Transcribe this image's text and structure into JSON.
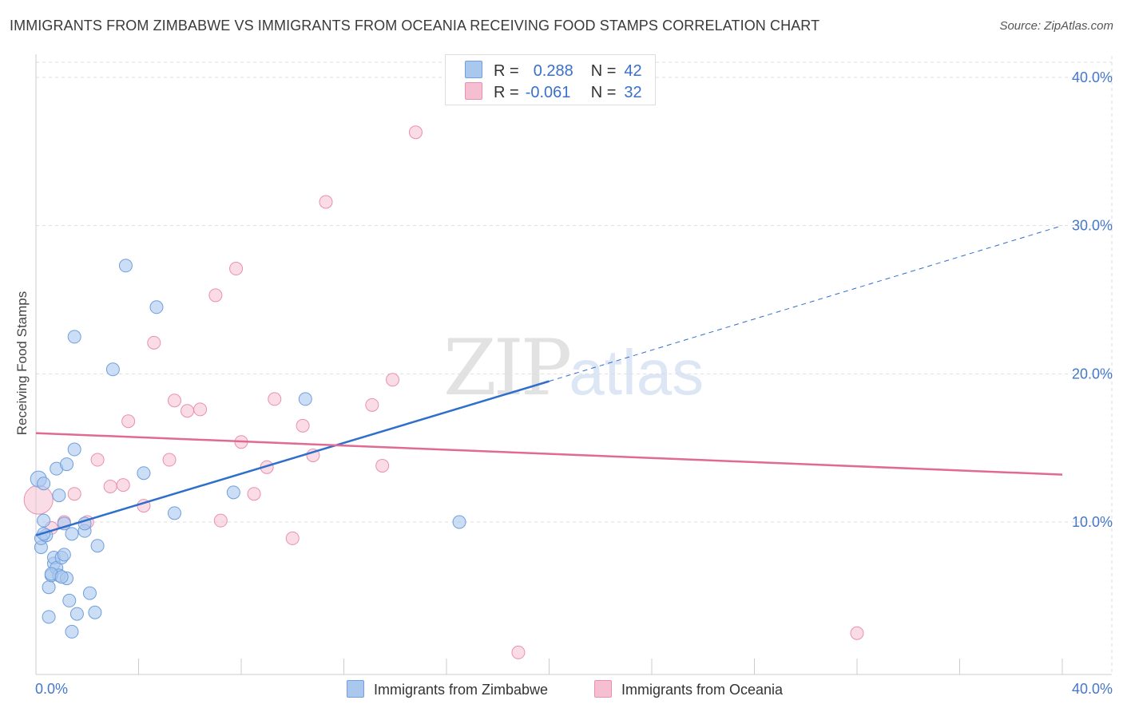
{
  "title": "IMMIGRANTS FROM ZIMBABWE VS IMMIGRANTS FROM OCEANIA RECEIVING FOOD STAMPS CORRELATION CHART",
  "source": "Source: ZipAtlas.com",
  "watermark": {
    "zip": "ZIP",
    "atlas": "atlas"
  },
  "legend_stats": {
    "zimbabwe": {
      "r_label": "R =",
      "r_value": "0.288",
      "n_label": "N =",
      "n_value": "42"
    },
    "oceania": {
      "r_label": "R =",
      "r_value": "-0.061",
      "n_label": "N =",
      "n_value": "32"
    }
  },
  "colors": {
    "zimbabwe_fill": "#aac8ee",
    "zimbabwe_stroke": "#6f9fdc",
    "zimbabwe_line": "#2f6fcc",
    "oceania_fill": "#f6bfd1",
    "oceania_stroke": "#ea90ad",
    "oceania_line": "#e06a92",
    "grid": "#dddddd",
    "axis_text": "#4477cc"
  },
  "chart_data": {
    "type": "scatter",
    "title": "IMMIGRANTS FROM ZIMBABWE VS IMMIGRANTS FROM OCEANIA RECEIVING FOOD STAMPS CORRELATION CHART",
    "xlabel": "",
    "ylabel": "Receiving Food Stamps",
    "xlim": [
      0,
      40
    ],
    "ylim": [
      0,
      40
    ],
    "x_tick_labels": [
      "0.0%",
      "40.0%"
    ],
    "y_ticks": [
      10,
      20,
      30,
      40
    ],
    "y_tick_labels": [
      "10.0%",
      "20.0%",
      "30.0%",
      "40.0%"
    ],
    "grid": true,
    "legend_position": "bottom",
    "series": [
      {
        "name": "Immigrants from Zimbabwe",
        "points": [
          [
            0.1,
            12.9
          ],
          [
            0.2,
            8.3
          ],
          [
            0.2,
            8.9
          ],
          [
            0.3,
            12.6
          ],
          [
            0.3,
            10.1
          ],
          [
            0.4,
            9.1
          ],
          [
            0.5,
            5.6
          ],
          [
            0.5,
            3.6
          ],
          [
            0.6,
            6.4
          ],
          [
            0.7,
            7.2
          ],
          [
            0.7,
            7.6
          ],
          [
            0.8,
            6.9
          ],
          [
            0.8,
            13.6
          ],
          [
            0.9,
            11.8
          ],
          [
            0.9,
            6.4
          ],
          [
            1.0,
            7.6
          ],
          [
            1.1,
            7.8
          ],
          [
            1.1,
            9.9
          ],
          [
            1.2,
            6.2
          ],
          [
            1.2,
            13.9
          ],
          [
            1.3,
            4.7
          ],
          [
            1.4,
            2.6
          ],
          [
            1.4,
            9.2
          ],
          [
            1.5,
            22.5
          ],
          [
            1.5,
            14.9
          ],
          [
            1.6,
            3.8
          ],
          [
            1.9,
            9.4
          ],
          [
            1.9,
            9.9
          ],
          [
            2.1,
            5.2
          ],
          [
            2.3,
            3.9
          ],
          [
            2.4,
            8.4
          ],
          [
            3.0,
            20.3
          ],
          [
            3.5,
            27.3
          ],
          [
            4.2,
            13.3
          ],
          [
            4.7,
            24.5
          ],
          [
            5.4,
            10.6
          ],
          [
            7.7,
            12.0
          ],
          [
            10.5,
            18.3
          ],
          [
            16.5,
            10.0
          ],
          [
            0.3,
            9.2
          ],
          [
            0.6,
            6.5
          ],
          [
            1.0,
            6.3
          ]
        ],
        "trend": {
          "x": [
            0,
            20
          ],
          "y": [
            9.1,
            19.5
          ],
          "dashed_extension": {
            "x": [
              20,
              40
            ],
            "y": [
              19.5,
              30.0
            ]
          }
        }
      },
      {
        "name": "Immigrants from Oceania",
        "points": [
          [
            0.1,
            11.5
          ],
          [
            0.6,
            9.6
          ],
          [
            1.1,
            10.0
          ],
          [
            1.5,
            11.9
          ],
          [
            2.0,
            10.0
          ],
          [
            2.4,
            14.2
          ],
          [
            2.9,
            12.4
          ],
          [
            3.4,
            12.5
          ],
          [
            3.6,
            16.8
          ],
          [
            4.2,
            11.1
          ],
          [
            4.6,
            22.1
          ],
          [
            5.2,
            14.2
          ],
          [
            5.4,
            18.2
          ],
          [
            5.9,
            17.5
          ],
          [
            6.4,
            17.6
          ],
          [
            7.0,
            25.3
          ],
          [
            7.2,
            10.1
          ],
          [
            7.8,
            27.1
          ],
          [
            8.0,
            15.4
          ],
          [
            8.5,
            11.9
          ],
          [
            9.0,
            13.7
          ],
          [
            9.3,
            18.3
          ],
          [
            10.0,
            8.9
          ],
          [
            10.4,
            16.5
          ],
          [
            10.8,
            14.5
          ],
          [
            11.3,
            31.6
          ],
          [
            13.1,
            17.9
          ],
          [
            13.5,
            13.8
          ],
          [
            13.9,
            19.6
          ],
          [
            14.8,
            36.3
          ],
          [
            18.8,
            1.2
          ],
          [
            32.0,
            2.5
          ]
        ],
        "trend": {
          "x": [
            0,
            40
          ],
          "y": [
            16.0,
            13.2
          ]
        }
      }
    ]
  }
}
